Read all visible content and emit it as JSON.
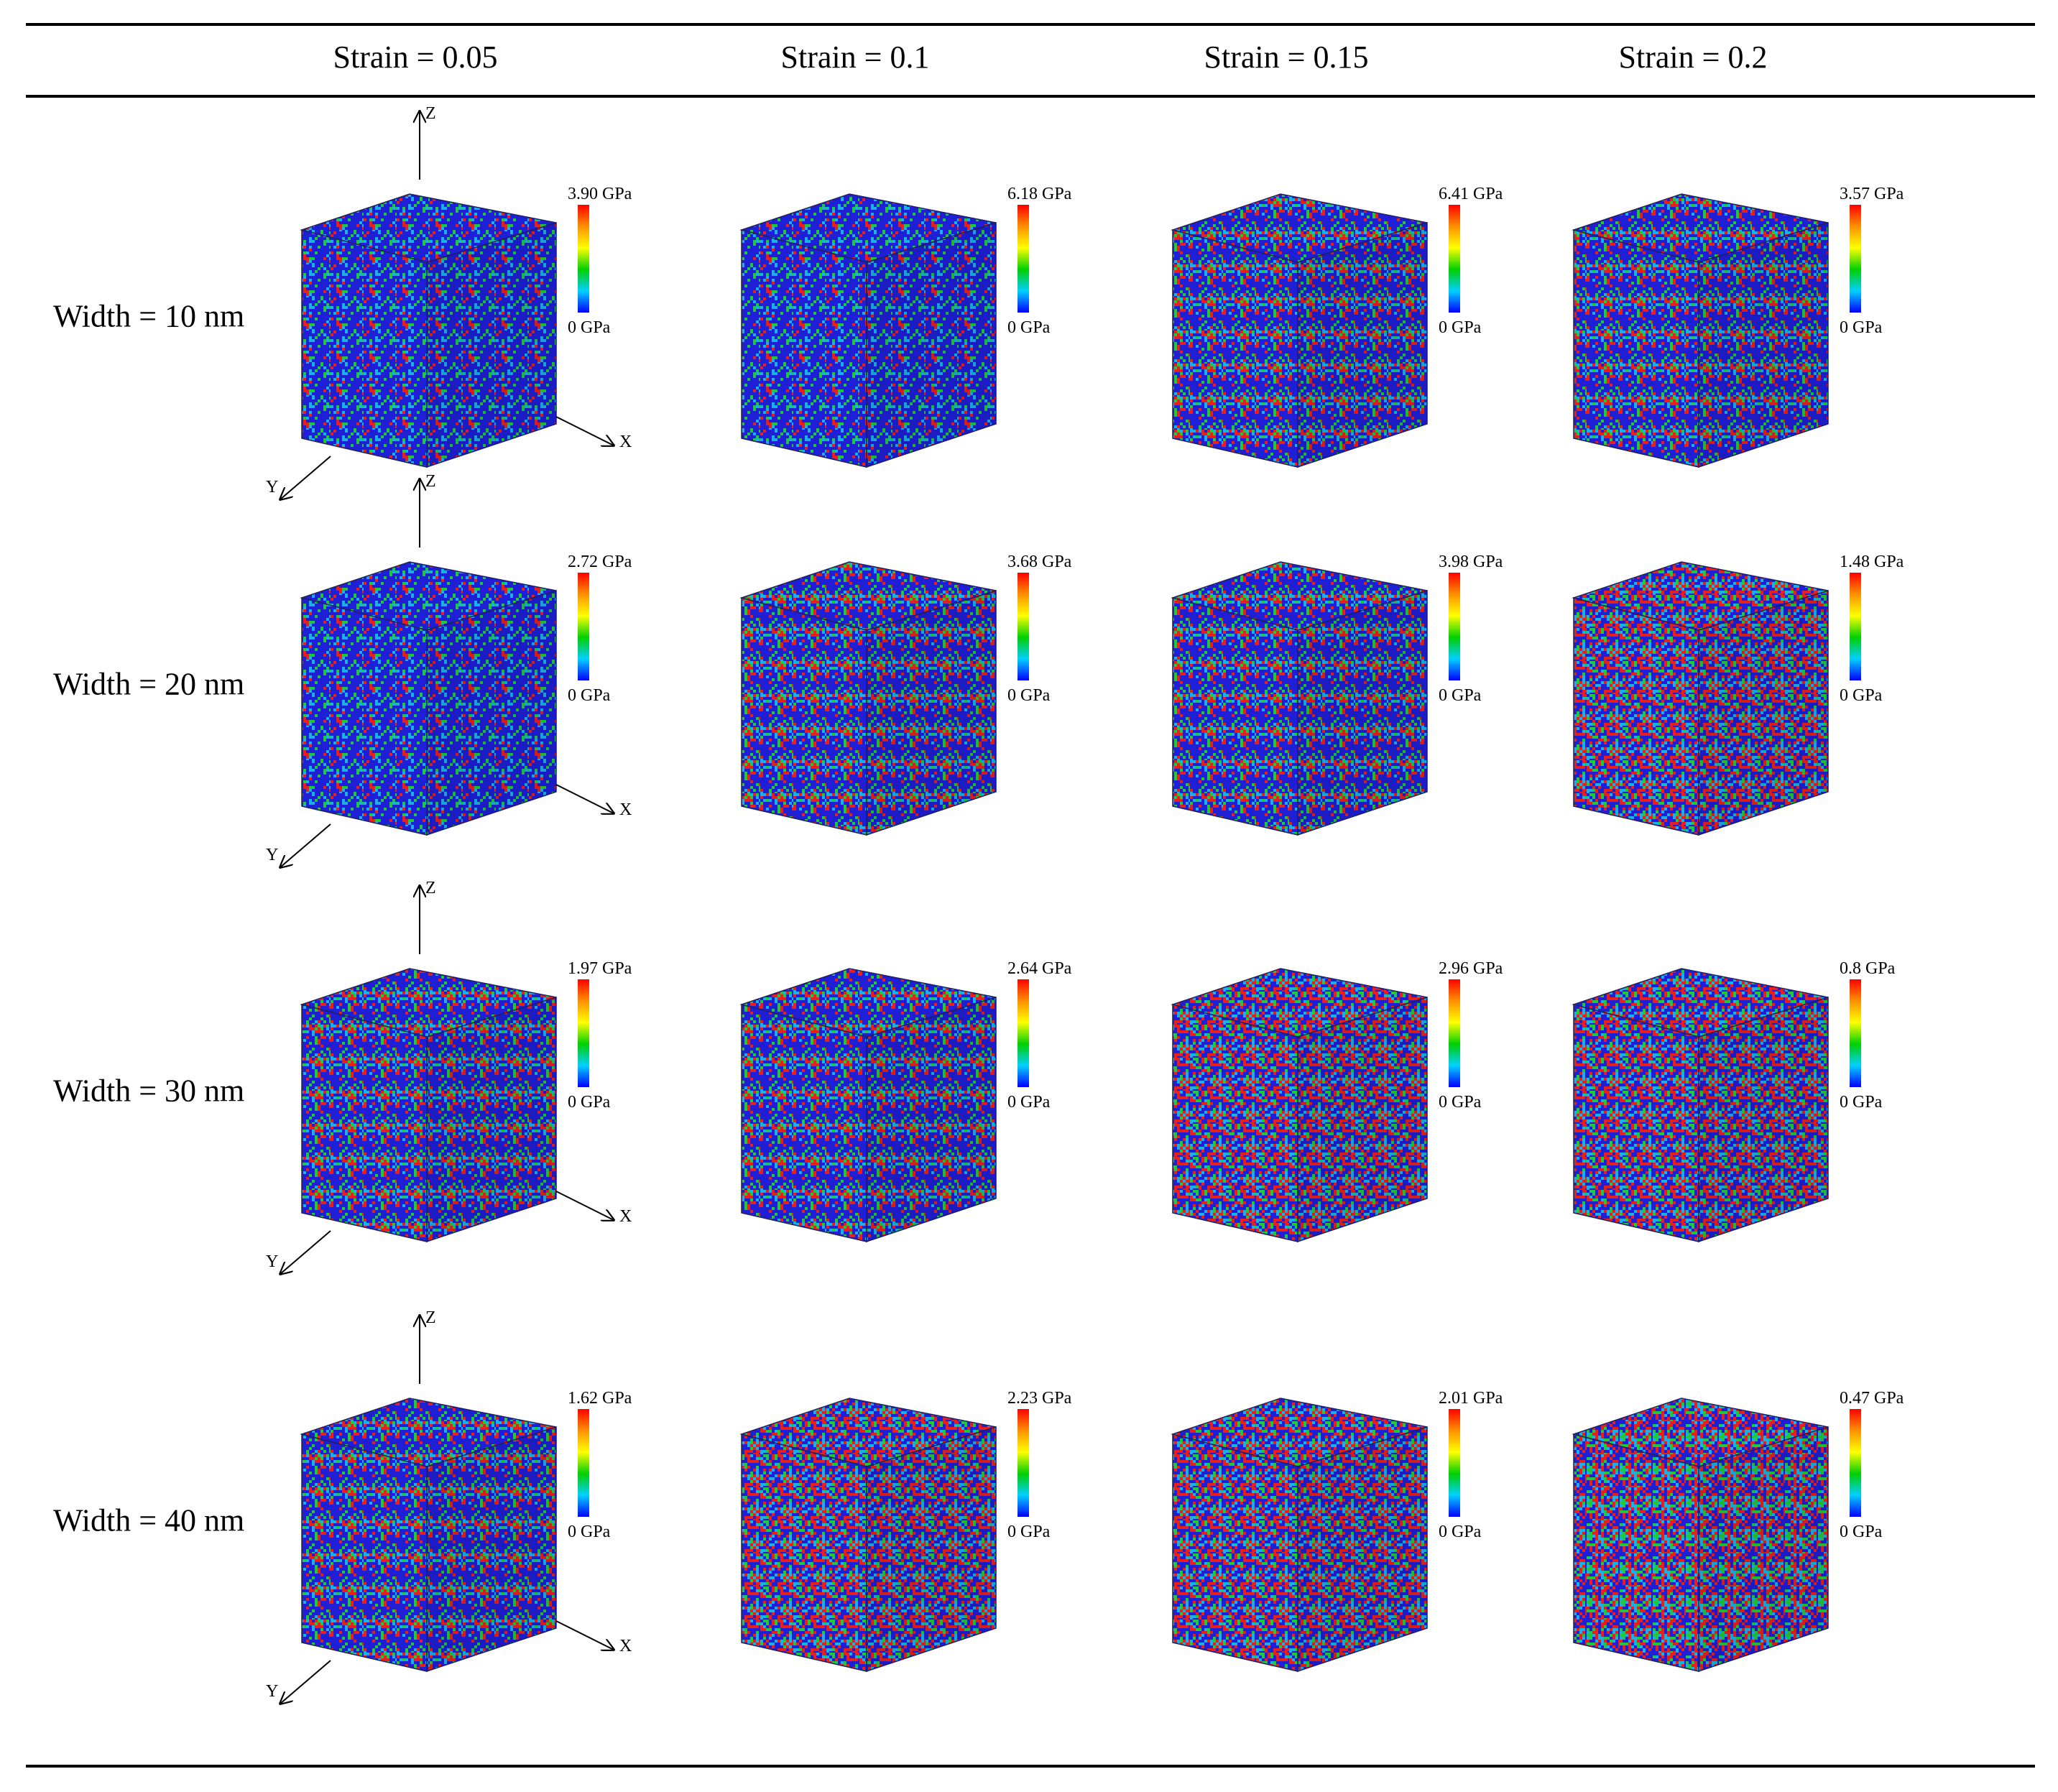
{
  "column_headers": [
    "Strain = 0.05",
    "Strain = 0.1",
    "Strain = 0.15",
    "Strain = 0.2"
  ],
  "row_headers": [
    "Width = 10 nm",
    "Width = 20 nm",
    "Width = 30 nm",
    "Width = 40 nm"
  ],
  "colorbar_min_label": "0 GPa",
  "colorbar_max_labels": [
    [
      "3.90 GPa",
      "6.18 GPa",
      "6.41 GPa",
      "3.57 GPa"
    ],
    [
      "2.72 GPa",
      "3.68 GPa",
      "3.98 GPa",
      "1.48 GPa"
    ],
    [
      "1.97 GPa",
      "2.64 GPa",
      "2.96 GPa",
      "0.8 GPa"
    ],
    [
      "1.62 GPa",
      "2.23 GPa",
      "2.01 GPa",
      "0.47 GPa"
    ]
  ],
  "axis_labels": {
    "x": "X",
    "y": "Y",
    "z": "Z"
  },
  "colors": {
    "blue": "#1f1fd6",
    "cyan": "#19b0e6",
    "green": "#21c83a",
    "red": "#e8201c",
    "colorbar_stops": [
      "#ff0000",
      "#ff9000",
      "#ffff00",
      "#00d000",
      "#00d0ff",
      "#0000ff"
    ]
  }
}
